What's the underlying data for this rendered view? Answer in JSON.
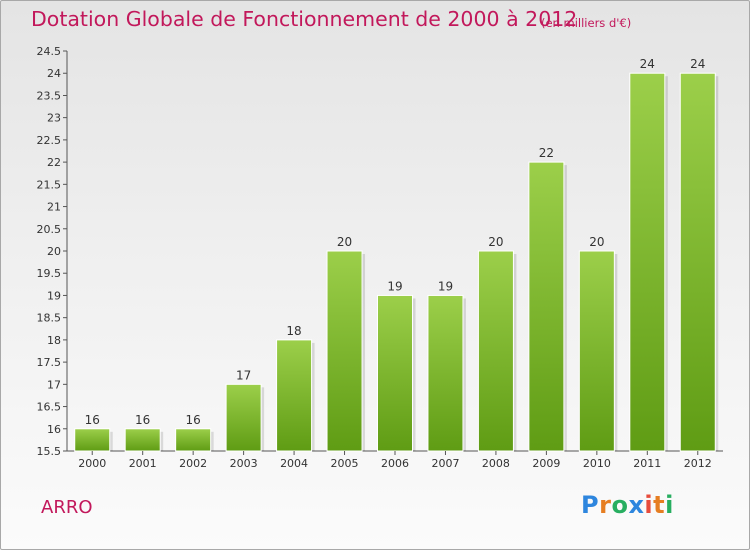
{
  "title": "Dotation Globale de Fonctionnement de 2000 à 2012",
  "unit_note": "(en milliers d'€)",
  "commune": "ARRO",
  "logo": {
    "text": "Proxiti",
    "letters": [
      {
        "char": "P",
        "color": "#2e86de"
      },
      {
        "char": "r",
        "color": "#e67e22"
      },
      {
        "char": "o",
        "color": "#27ae60"
      },
      {
        "char": "x",
        "color": "#2e86de"
      },
      {
        "char": "i",
        "color": "#e74c3c"
      },
      {
        "char": "t",
        "color": "#e67e22"
      },
      {
        "char": "i",
        "color": "#27ae60"
      }
    ]
  },
  "colors": {
    "accent": "#c2185b",
    "bar_light": "#9ccf4a",
    "bar_dark": "#5f9c14"
  },
  "chart_data": {
    "type": "bar",
    "title": "Dotation Globale de Fonctionnement de 2000 à 2012",
    "categories": [
      "2000",
      "2001",
      "2002",
      "2003",
      "2004",
      "2005",
      "2006",
      "2007",
      "2008",
      "2009",
      "2010",
      "2011",
      "2012"
    ],
    "values": [
      16,
      16,
      16,
      17,
      18,
      20,
      19,
      19,
      20,
      22,
      20,
      24,
      24
    ],
    "ylim": [
      15.5,
      24.5
    ],
    "yticks": [
      "15.5",
      "16",
      "16.5",
      "17",
      "17.5",
      "18",
      "18.5",
      "19",
      "19.5",
      "20",
      "20.5",
      "21",
      "21.5",
      "22",
      "22.5",
      "23",
      "23.5",
      "24",
      "24.5"
    ],
    "grid": false,
    "xlabel": "",
    "ylabel": ""
  }
}
